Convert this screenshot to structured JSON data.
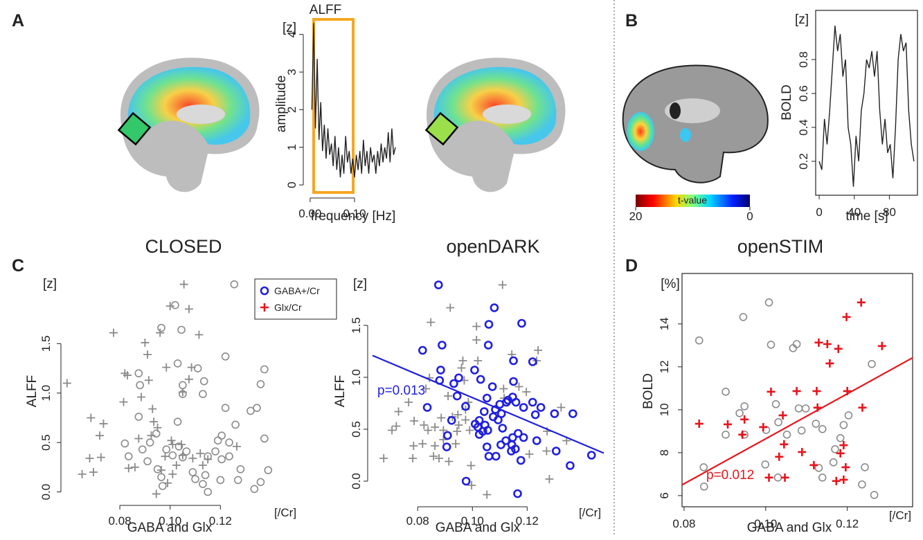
{
  "panel_labels": [
    "A",
    "B",
    "C",
    "D"
  ],
  "conditions": [
    "CLOSED",
    "openDARK",
    "openSTIM"
  ],
  "colorbar": {
    "title": "t-value",
    "range": [
      20,
      0
    ]
  },
  "chart_data": [
    {
      "type": "line",
      "title": "ALFF",
      "ylabel": "amplitude",
      "yunit": "[z]",
      "xlabel": "frequency [Hz]",
      "color": "#222222",
      "x": [
        0.004,
        0.008,
        0.012,
        0.016,
        0.02,
        0.024,
        0.028,
        0.032,
        0.036,
        0.04,
        0.044,
        0.048,
        0.052,
        0.056,
        0.06,
        0.064,
        0.068,
        0.072,
        0.076,
        0.08,
        0.084,
        0.088,
        0.092,
        0.096,
        0.1,
        0.104,
        0.108,
        0.112,
        0.116,
        0.12,
        0.124,
        0.128,
        0.132,
        0.136,
        0.14,
        0.144,
        0.148,
        0.152,
        0.156,
        0.16,
        0.164,
        0.168,
        0.172,
        0.176,
        0.18,
        0.184,
        0.188,
        0.192
      ],
      "values": [
        2.0,
        4.3,
        1.5,
        3.35,
        1.2,
        2.2,
        0.9,
        1.6,
        0.7,
        1.5,
        0.8,
        1.1,
        0.5,
        1.3,
        0.4,
        1.0,
        0.2,
        0.8,
        0.3,
        1.3,
        0.6,
        0.9,
        0.3,
        0.7,
        0.2,
        0.8,
        0.4,
        0.9,
        0.3,
        1.2,
        0.5,
        0.9,
        0.3,
        1.0,
        0.6,
        0.8,
        0.3,
        0.9,
        0.5,
        1.1,
        0.6,
        1.0,
        0.7,
        1.4,
        0.6,
        1.5,
        0.8,
        1.0
      ],
      "highlight": {
        "range": [
          0.008,
          0.097
        ],
        "color": "#f5a623"
      },
      "xlim": [
        -0.006,
        0.206
      ],
      "ylim": [
        -0.2,
        4.4
      ],
      "xticks": [
        {
          "value": 0,
          "label": "0.00"
        },
        {
          "value": 0.1,
          "label": "0.10"
        }
      ],
      "yticks": [
        0,
        1,
        2,
        3,
        4
      ],
      "frame": false
    },
    {
      "type": "line",
      "ylabel": "BOLD",
      "yunit": "[z]",
      "xlabel": "time [s]",
      "color": "#222222",
      "x": [
        0,
        3,
        6,
        9,
        12,
        15,
        18,
        21,
        24,
        27,
        30,
        33,
        36,
        39,
        42,
        45,
        48,
        51,
        54,
        57,
        60,
        63,
        66,
        69,
        72,
        75,
        78,
        81,
        84,
        87,
        90,
        93,
        96,
        99,
        102,
        105,
        108
      ],
      "values": [
        0.2,
        0.15,
        0.45,
        0.3,
        0.5,
        0.75,
        1.0,
        0.85,
        0.95,
        0.7,
        0.8,
        0.4,
        0.3,
        0.05,
        0.35,
        0.2,
        0.5,
        0.6,
        0.8,
        0.75,
        0.85,
        0.7,
        0.85,
        0.5,
        0.3,
        0.45,
        0.25,
        0.3,
        0.1,
        0.4,
        0.8,
        0.95,
        0.85,
        0.9,
        0.5,
        0.3,
        0.2
      ],
      "xlim": [
        -4,
        112
      ],
      "ylim": [
        0,
        1.09
      ],
      "xticks": [
        0,
        40,
        80
      ],
      "yticks": [
        0.2,
        0.4,
        0.6,
        0.8
      ],
      "frame": true
    },
    {
      "type": "scatter",
      "ylabel": "ALFF",
      "yunit": "[z]",
      "xlabel": "GABA and Glx",
      "xunit": "[/Cr]",
      "legend": "upper right",
      "series": [
        {
          "name": "GABA+/Cr",
          "marker": "circle",
          "color": "#8a8a8a",
          "legend_color": "#1f1fe0",
          "x": [
            0.1255,
            0.102,
            0.0965,
            0.1045,
            0.0875,
            0.088,
            0.103,
            0.111,
            0.1135,
            0.105,
            0.122,
            0.105,
            0.113,
            0.122,
            0.136,
            0.1375,
            0.1345,
            0.132,
            0.1375,
            0.103,
            0.0875,
            0.092,
            0.082,
            0.0835,
            0.089,
            0.091,
            0.0985,
            0.0945,
            0.0965,
            0.095,
            0.097,
            0.1035,
            0.105,
            0.101,
            0.1065,
            0.109,
            0.11,
            0.113,
            0.115,
            0.118,
            0.1205,
            0.119,
            0.1205,
            0.1235,
            0.126,
            0.1235,
            0.12,
            0.128,
            0.127,
            0.1335,
            0.136,
            0.139,
            0.115,
            0.114
          ],
          "values": [
            2.1,
            1.89,
            1.66,
            1.64,
            1.2,
            1.08,
            1.3,
            1.25,
            1.12,
            1.08,
            1.37,
            0.99,
            0.99,
            0.85,
            1.09,
            1.24,
            0.85,
            0.82,
            0.54,
            0.71,
            0.76,
            0.5,
            0.49,
            0.36,
            0.43,
            0.31,
            0.43,
            0.59,
            0.15,
            0.23,
            0.06,
            0.46,
            0.35,
            0.37,
            0.41,
            0.2,
            0.13,
            0.08,
            0.0,
            0.41,
            0.33,
            0.52,
            0.57,
            0.5,
            0.68,
            0.36,
            0.12,
            0.23,
            0.12,
            0.03,
            0.1,
            0.22,
            0.36,
            0.17
          ]
        },
        {
          "name": "Glx/Cr",
          "marker": "plus",
          "color": "#8a8a8a",
          "legend_color": "#e8141b",
          "x": [
            0.1055,
            0.1,
            0.1075,
            0.0775,
            0.096,
            0.1115,
            0.09,
            0.091,
            0.082,
            0.083,
            0.0985,
            0.1085,
            0.0915,
            0.059,
            0.1075,
            0.0815,
            0.0885,
            0.105,
            0.0685,
            0.0735,
            0.072,
            0.093,
            0.0935,
            0.095,
            0.0875,
            0.1005,
            0.101,
            0.1045,
            0.105,
            0.1025,
            0.098,
            0.112,
            0.115,
            0.113,
            0.1265,
            0.068,
            0.0725,
            0.0695,
            0.065,
            0.0835,
            0.086,
            0.0965,
            0.099,
            0.101,
            0.0945,
            0.109,
            0.0925
          ],
          "values": [
            2.1,
            1.88,
            1.85,
            1.61,
            1.61,
            1.59,
            1.51,
            1.39,
            1.2,
            1.18,
            1.26,
            1.26,
            1.13,
            1.1,
            1.14,
            0.91,
            0.96,
            1.01,
            0.75,
            0.69,
            0.57,
            0.84,
            0.71,
            0.65,
            0.54,
            0.52,
            0.48,
            0.48,
            0.37,
            0.27,
            0.36,
            0.39,
            0.33,
            0.27,
            0.46,
            0.34,
            0.35,
            0.2,
            0.18,
            0.24,
            0.25,
            0.22,
            0.09,
            0.18,
            -0.02,
            0.34,
            0.57
          ]
        }
      ],
      "xlim": [
        0.0585,
        0.148
      ],
      "ylim": [
        -0.08,
        2.21
      ],
      "xticks": [
        0.08,
        {
          "value": 0.1,
          "label": "0.10"
        },
        0.12
      ],
      "yticks": [
        {
          "value": 0,
          "label": "0.0"
        },
        0.5,
        {
          "value": 1,
          "label": "1.0"
        },
        1.5
      ],
      "frame": false
    },
    {
      "type": "scatter",
      "ylabel": "ALFF",
      "yunit": "[z]",
      "xlabel": "GABA and Glx",
      "xunit": "[/Cr]",
      "annotation": "p=0.013",
      "series": [
        {
          "marker": "plus",
          "color": "#8a8a8a",
          "x": [
            0.111,
            0.0848,
            0.0919,
            0.1015,
            0.1015,
            0.0965,
            0.102,
            0.096,
            0.1144,
            0.124,
            0.1235,
            0.097,
            0.0843,
            0.083,
            0.0911,
            0.1197,
            0.0985,
            0.1114,
            0.1116,
            0.117,
            0.1324,
            0.0767,
            0.073,
            0.0722,
            0.0706,
            0.0676,
            0.0787,
            0.0823,
            0.0838,
            0.0863,
            0.0886,
            0.0927,
            0.0947,
            0.095,
            0.0975,
            0.0975,
            0.099,
            0.0894,
            0.0818,
            0.0863,
            0.0894,
            0.0939,
            0.0785,
            0.0782,
            0.0858,
            0.0878,
            0.0914,
            0.0944,
            0.0995,
            0.1273,
            0.1271,
            0.1208,
            0.0997,
            0.1053,
            0.1281,
            0.1344
          ],
          "values": [
            1.89,
            1.53,
            1.67,
            1.49,
            1.36,
            1.16,
            1.16,
            1.09,
            1.22,
            1.26,
            1.16,
            0.97,
            0.995,
            0.89,
            0.82,
            0.86,
            0.76,
            0.89,
            0.8,
            0.91,
            0.71,
            0.76,
            0.67,
            0.53,
            0.49,
            0.22,
            0.58,
            0.54,
            0.49,
            0.52,
            0.61,
            0.62,
            0.64,
            0.54,
            0.69,
            0.59,
            0.49,
            0.49,
            0.36,
            0.34,
            0.4,
            0.36,
            0.34,
            0.22,
            0.24,
            0.22,
            0.19,
            0.48,
            0.15,
            0.48,
            0.29,
            0.26,
            -0.04,
            -0.13,
            0.02,
            0.39
          ]
        },
        {
          "marker": "circle",
          "color": "#1f1fe0",
          "x": [
            0.0876,
            0.108,
            0.106,
            0.118,
            0.0889,
            0.1058,
            0.122,
            0.115,
            0.0818,
            0.0884,
            0.088,
            0.0932,
            0.095,
            0.1008,
            0.115,
            0.103,
            0.1073,
            0.0944,
            0.1147,
            0.1124,
            0.0835,
            0.0975,
            0.1053,
            0.1084,
            0.11,
            0.113,
            0.1159,
            0.1043,
            0.1076,
            0.1106,
            0.1094,
            0.1187,
            0.122,
            0.125,
            0.123,
            0.13,
            0.1367,
            0.0924,
            0.1025,
            0.1046,
            0.101,
            0.102,
            0.1038,
            0.1025,
            0.1167,
            0.1187,
            0.111,
            0.1056,
            0.1122,
            0.1147,
            0.1104,
            0.1053,
            0.1235,
            0.0909,
            0.0906,
            0.1144,
            0.1142,
            0.1157,
            0.1086,
            0.106,
            0.1177,
            0.1306,
            0.1435,
            0.1357,
            0.0977,
            0.1165
          ],
          "values": [
            1.89,
            1.67,
            1.51,
            1.52,
            1.31,
            1.31,
            1.15,
            1.16,
            1.26,
            1.07,
            0.97,
            0.94,
            0.995,
            1.07,
            0.96,
            0.98,
            0.91,
            0.82,
            0.81,
            0.76,
            0.71,
            0.72,
            0.8,
            0.69,
            0.74,
            0.78,
            0.76,
            0.67,
            0.62,
            0.65,
            0.59,
            0.71,
            0.76,
            0.71,
            0.64,
            0.65,
            0.65,
            0.585,
            0.585,
            0.54,
            0.55,
            0.52,
            0.48,
            0.45,
            0.46,
            0.42,
            0.51,
            0.49,
            0.39,
            0.42,
            0.35,
            0.33,
            0.39,
            0.44,
            0.33,
            0.35,
            0.29,
            0.31,
            0.24,
            0.24,
            0.2,
            0.29,
            0.25,
            0.15,
            0.0,
            -0.12
          ]
        }
      ],
      "fit": {
        "x": [
          0.0635,
          0.148
        ],
        "y": [
          1.21,
          0.27
        ],
        "color": "#1f1fe0"
      },
      "xlim": [
        0.0635,
        0.148
      ],
      "ylim": [
        -0.2,
        2.0
      ],
      "xticks": [
        0.08,
        {
          "value": 0.1,
          "label": "0.10"
        },
        0.12
      ],
      "yticks": [
        {
          "value": 0,
          "label": "0.0"
        },
        0.5,
        {
          "value": 1,
          "label": "1.0"
        },
        1.5
      ],
      "frame": false
    },
    {
      "type": "scatter",
      "ylabel": "BOLD",
      "yunit": "[%]",
      "xlabel": "GABA and Glx",
      "xunit": "[/Cr]",
      "annotation": "p=0.012",
      "series": [
        {
          "marker": "circle",
          "color": "#8a8a8a",
          "x": [
            0.0837,
            0.1008,
            0.0945,
            0.1013,
            0.1067,
            0.1076,
            0.126,
            0.0902,
            0.0948,
            0.0936,
            0.1025,
            0.1001,
            0.1031,
            0.1052,
            0.1088,
            0.1098,
            0.1081,
            0.1123,
            0.1139,
            0.1191,
            0.1203,
            0.1183,
            0.117,
            0.1166,
            0.113,
            0.1139,
            0.1243,
            0.1236,
            0.1266,
            0.103,
            0.0999,
            0.0848,
            0.0902,
            0.0948,
            0.0849
          ],
          "values": [
            13.23,
            15.0,
            14.32,
            13.03,
            12.87,
            13.06,
            12.13,
            10.84,
            10.16,
            9.84,
            10.26,
            9.06,
            9.42,
            8.84,
            9.03,
            10.06,
            10.06,
            9.35,
            9.1,
            9.29,
            9.74,
            8.68,
            8.16,
            7.55,
            7.29,
            6.84,
            7.32,
            6.52,
            6.03,
            6.84,
            7.45,
            7.32,
            8.84,
            8.84,
            6.42
          ]
        },
        {
          "marker": "plus",
          "color": "#e8141b",
          "x": [
            0.1234,
            0.1198,
            0.113,
            0.1151,
            0.1178,
            0.1285,
            0.1157,
            0.1076,
            0.1013,
            0.1125,
            0.12,
            0.1127,
            0.1237,
            0.0837,
            0.0907,
            0.0948,
            0.0943,
            0.0994,
            0.1042,
            0.1045,
            0.1033,
            0.1089,
            0.1118,
            0.1183,
            0.1191,
            0.1196,
            0.1191,
            0.1173,
            0.1008,
            0.1047
          ],
          "values": [
            15.0,
            14.32,
            13.13,
            13.06,
            12.84,
            12.97,
            12.16,
            10.87,
            10.84,
            10.87,
            10.87,
            10.1,
            10.1,
            9.35,
            9.32,
            9.55,
            8.84,
            9.19,
            9.74,
            8.39,
            7.81,
            8.03,
            7.42,
            7.97,
            8.35,
            7.32,
            6.74,
            6.68,
            6.84,
            6.84
          ]
        }
      ],
      "fit": {
        "x": [
          0.0795,
          0.136
        ],
        "y": [
          6.5,
          12.42
        ],
        "color": "#e8141b"
      },
      "xlim": [
        0.0795,
        0.136
      ],
      "ylim": [
        5.48,
        16.35
      ],
      "xticks": [
        0.08,
        {
          "value": 0.1,
          "label": "0.10"
        },
        0.12
      ],
      "yticks": [
        6,
        8,
        10,
        12,
        14
      ],
      "frame": true
    }
  ]
}
